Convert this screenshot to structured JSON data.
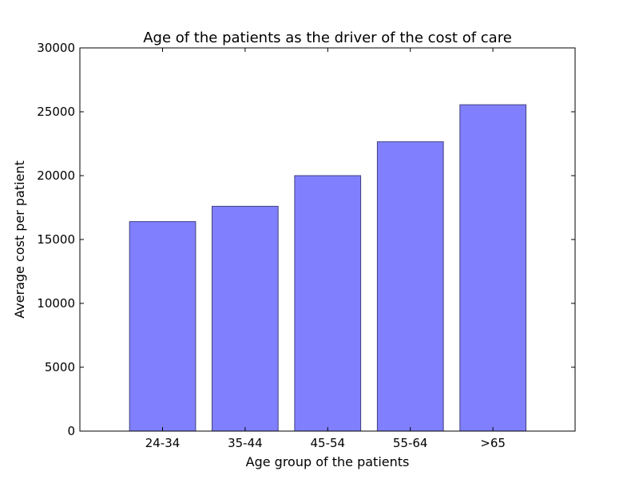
{
  "chart_data": {
    "type": "bar",
    "title": "Age of the patients as the driver of the cost of care",
    "xlabel": "Age group of the patients",
    "ylabel": "Average cost per patient",
    "categories": [
      "24-34",
      "35-44",
      "45-54",
      "55-64",
      ">65"
    ],
    "values": [
      16400,
      17600,
      20000,
      22650,
      25550
    ],
    "ylim": [
      0,
      30000
    ],
    "yticks": [
      "0",
      "5000",
      "10000",
      "15000",
      "20000",
      "25000",
      "30000"
    ],
    "grid": false,
    "bar_color": "#8080ff",
    "bar_edge_color": "#40407f"
  }
}
